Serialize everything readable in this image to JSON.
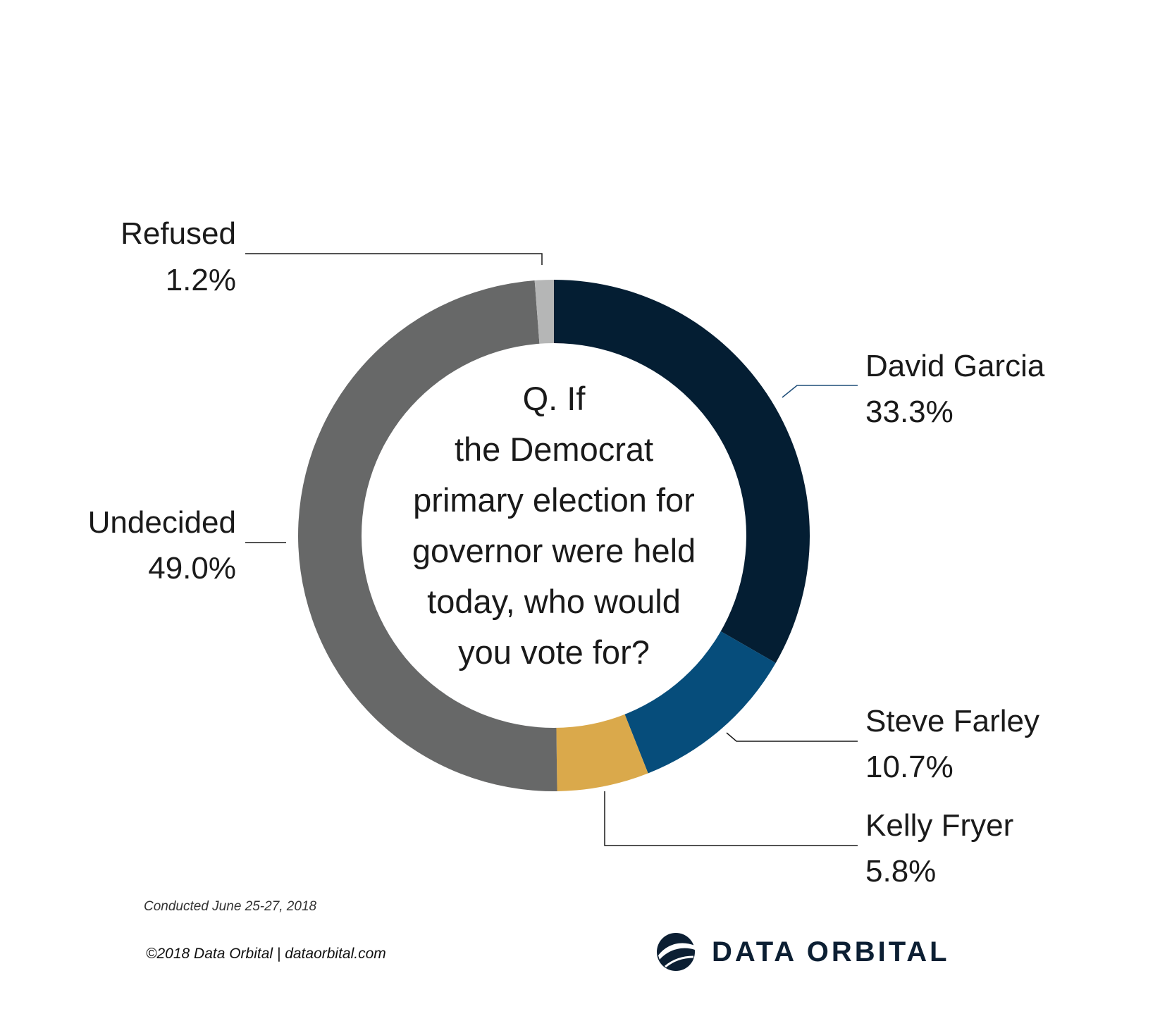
{
  "chart_data": {
    "type": "pie",
    "variant": "donut",
    "center_text": [
      "Q. If",
      "the Democrat",
      "primary election for",
      "governor were held",
      "today, who would",
      "you vote for?"
    ],
    "slices": [
      {
        "name": "David Garcia",
        "value": 33.3,
        "label": "33.3%",
        "color": "#041e33"
      },
      {
        "name": "Steve Farley",
        "value": 10.7,
        "label": "10.7%",
        "color": "#064d7b"
      },
      {
        "name": "Kelly Fryer",
        "value": 5.8,
        "label": "5.8%",
        "color": "#daa94b"
      },
      {
        "name": "Undecided",
        "value": 49.0,
        "label": "49.0%",
        "color": "#676868"
      },
      {
        "name": "Refused",
        "value": 1.2,
        "label": "1.2%",
        "color": "#b5b6b6"
      }
    ]
  },
  "footer": {
    "conducted": "Conducted June 25-27, 2018",
    "copyright": "©2018 Data Orbital | dataorbital.com",
    "brand": "DATA ORBITAL",
    "brand_icon": "orbital-globe-icon"
  }
}
